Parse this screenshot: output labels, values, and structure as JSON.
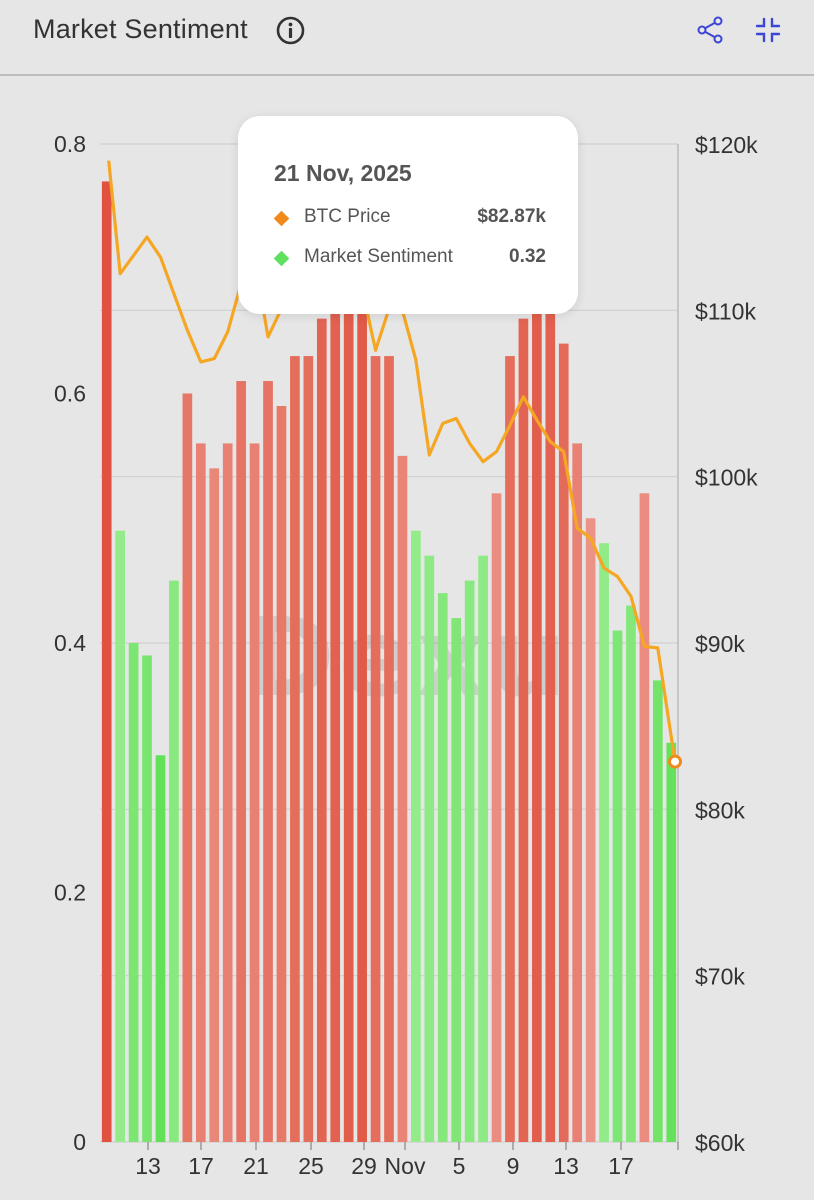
{
  "header": {
    "title": "Market Sentiment"
  },
  "colors": {
    "price_line": "#f5a623",
    "sentiment_positive": "#7ee86f",
    "sentiment_negative": "#ee7a6b",
    "tooltip_price_marker": "#f08a1a",
    "tooltip_sentiment_marker": "#5fe05f",
    "icon_accent": "#3b45d6"
  },
  "icons": {
    "info": "info-icon",
    "share": "share-icon",
    "collapse": "collapse-icon"
  },
  "tooltip": {
    "date": "21 Nov, 2025",
    "price_label": "BTC Price",
    "price_value": "$82.87k",
    "sentiment_label": "Market Sentiment",
    "sentiment_value": "0.32"
  },
  "watermark": "Dexu",
  "chart_data": {
    "type": "bar",
    "y_left": {
      "min": 0,
      "max": 0.8,
      "ticks": [
        "0",
        "0.2",
        "0.4",
        "0.6",
        "0.8"
      ]
    },
    "y_right": {
      "min": 60,
      "max": 120,
      "unit": "k USD",
      "ticks": [
        "$60k",
        "$70k",
        "$80k",
        "$90k",
        "$100k",
        "$110k",
        "$120k"
      ]
    },
    "x_ticks": [
      "13",
      "17",
      "21",
      "25",
      "29",
      "Nov",
      "5",
      "9",
      "13",
      "17"
    ],
    "grid": true,
    "series": [
      {
        "name": "Market Sentiment",
        "kind": "bar",
        "axis": "left",
        "values": [
          0.77,
          0.49,
          0.4,
          0.39,
          0.31,
          0.45,
          0.6,
          0.56,
          0.54,
          0.56,
          0.61,
          0.56,
          0.61,
          0.59,
          0.63,
          0.63,
          0.66,
          0.67,
          0.68,
          0.69,
          0.63,
          0.63,
          0.55,
          0.49,
          0.47,
          0.44,
          0.42,
          0.45,
          0.47,
          0.52,
          0.63,
          0.66,
          0.68,
          0.67,
          0.64,
          0.56,
          0.5,
          0.48,
          0.41,
          0.43,
          0.52,
          0.37,
          0.32
        ],
        "polarity": [
          "neg",
          "pos",
          "pos",
          "pos",
          "pos",
          "pos",
          "neg",
          "neg",
          "neg",
          "neg",
          "neg",
          "neg",
          "neg",
          "neg",
          "neg",
          "neg",
          "neg",
          "neg",
          "neg",
          "neg",
          "neg",
          "neg",
          "neg",
          "pos",
          "pos",
          "pos",
          "pos",
          "pos",
          "pos",
          "neg",
          "neg",
          "neg",
          "neg",
          "neg",
          "neg",
          "neg",
          "neg",
          "pos",
          "pos",
          "pos",
          "neg",
          "pos",
          "pos"
        ]
      },
      {
        "name": "BTC Price",
        "kind": "line",
        "axis": "right",
        "values": [
          119,
          112.2,
          113.3,
          114.4,
          113.2,
          111.0,
          108.8,
          106.9,
          107.1,
          108.7,
          111.6,
          113.1,
          108.4,
          110.1,
          111.2,
          111.8,
          113.2,
          114.2,
          112.8,
          111.3,
          107.6,
          110.1,
          110.0,
          107.0,
          101.3,
          103.2,
          103.5,
          102.0,
          100.9,
          101.5,
          103.1,
          104.8,
          103.4,
          102.1,
          101.5,
          96.9,
          96.3,
          94.5,
          94.0,
          92.8,
          89.8,
          89.7,
          82.87
        ]
      }
    ]
  }
}
